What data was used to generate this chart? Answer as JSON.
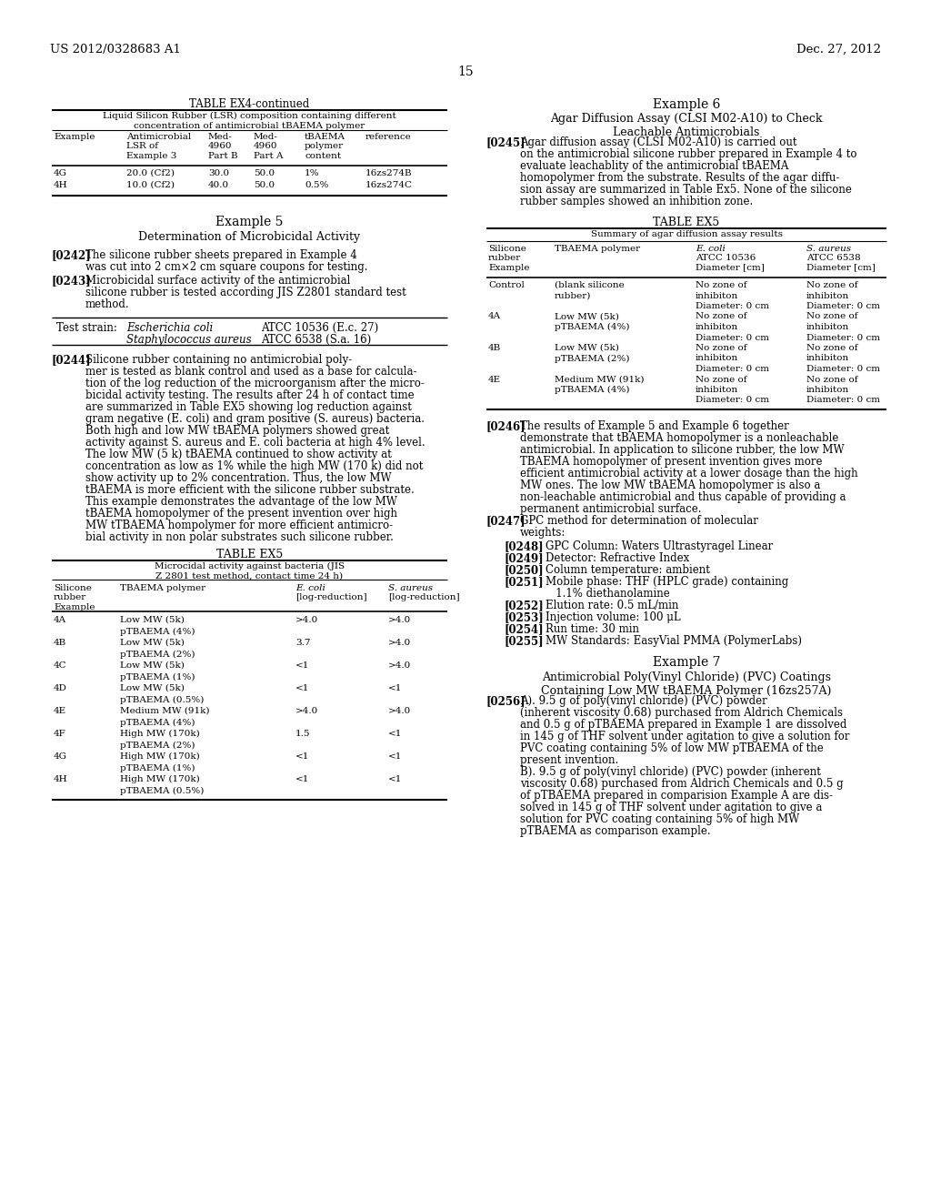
{
  "bg_color": "#ffffff",
  "header_left": "US 2012/0328683 A1",
  "header_right": "Dec. 27, 2012",
  "page_num": "15",
  "left_col": {
    "table_ex4_title": "TABLE EX4-continued",
    "table_ex4_subtitle": "Liquid Silicon Rubber (LSR) composition containing different\nconcentration of antimicrobial tBAEMA polymer",
    "table_ex4_headers": [
      "Example",
      "Antimicrobial\nLSR of\nExample 3",
      "Med-\n4960\nPart B",
      "Med-\n4960\nPart A",
      "tBAEMA\npolymer\ncontent",
      "reference"
    ],
    "table_ex4_rows": [
      [
        "4G",
        "20.0 (Cf2)",
        "30.0",
        "50.0",
        "1%",
        "16zs274B"
      ],
      [
        "4H",
        "10.0 (Cf2)",
        "40.0",
        "50.0",
        "0.5%",
        "16zs274C"
      ]
    ],
    "example5_title": "Example 5",
    "example5_subtitle": "Determination of Microbicidal Activity",
    "test_strain_ecoli": "Escherichia coli",
    "test_strain_staph": "Staphylococcus aureus",
    "test_strain_ecoli_atcc": "ATCC 10536 (E.c. 27)",
    "test_strain_staph_atcc": "ATCC 6538 (S.a. 16)",
    "table_ex5_title": "TABLE EX5",
    "table_ex5_subtitle": "Microcidal activity against bacteria (JIS\nZ 2801 test method, contact time 24 h)",
    "table_ex5_rows": [
      [
        "4A",
        "Low MW (5k)",
        ">4.0",
        ">4.0"
      ],
      [
        "",
        "pTBAEMA (4%)",
        "",
        ""
      ],
      [
        "4B",
        "Low MW (5k)",
        "3.7",
        ">4.0"
      ],
      [
        "",
        "pTBAEMA (2%)",
        "",
        ""
      ],
      [
        "4C",
        "Low MW (5k)",
        "<1",
        ">4.0"
      ],
      [
        "",
        "pTBAEMA (1%)",
        "",
        ""
      ],
      [
        "4D",
        "Low MW (5k)",
        "<1",
        "<1"
      ],
      [
        "",
        "pTBAEMA (0.5%)",
        "",
        ""
      ],
      [
        "4E",
        "Medium MW (91k)",
        ">4.0",
        ">4.0"
      ],
      [
        "",
        "pTBAEMA (4%)",
        "",
        ""
      ],
      [
        "4F",
        "High MW (170k)",
        "1.5",
        "<1"
      ],
      [
        "",
        "pTBAEMA (2%)",
        "",
        ""
      ],
      [
        "4G",
        "High MW (170k)",
        "<1",
        "<1"
      ],
      [
        "",
        "pTBAEMA (1%)",
        "",
        ""
      ],
      [
        "4H",
        "High MW (170k)",
        "<1",
        "<1"
      ],
      [
        "",
        "pTBAEMA (0.5%)",
        "",
        ""
      ]
    ]
  },
  "right_col": {
    "example6_title": "Example 6",
    "example6_subtitle": "Agar Diffusion Assay (CLSI M02-A10) to Check\nLeachable Antimicrobials",
    "table_ex5_right_title": "TABLE EX5",
    "table_ex5_right_subtitle": "Summary of agar diffusion assay results",
    "table_ex5_right_rows": [
      [
        "Control",
        "(blank silicone",
        "No zone of",
        "No zone of"
      ],
      [
        "",
        "rubber)",
        "inhibiton",
        "inhibiton"
      ],
      [
        "",
        "",
        "Diameter: 0 cm",
        "Diameter: 0 cm"
      ],
      [
        "4A",
        "Low MW (5k)",
        "No zone of",
        "No zone of"
      ],
      [
        "",
        "pTBAEMA (4%)",
        "inhibiton",
        "inhibiton"
      ],
      [
        "",
        "",
        "Diameter: 0 cm",
        "Diameter: 0 cm"
      ],
      [
        "4B",
        "Low MW (5k)",
        "No zone of",
        "No zone of"
      ],
      [
        "",
        "pTBAEMA (2%)",
        "inhibiton",
        "inhibiton"
      ],
      [
        "",
        "",
        "Diameter: 0 cm",
        "Diameter: 0 cm"
      ],
      [
        "4E",
        "Medium MW (91k)",
        "No zone of",
        "No zone of"
      ],
      [
        "",
        "pTBAEMA (4%)",
        "inhibiton",
        "inhibiton"
      ],
      [
        "",
        "",
        "Diameter: 0 cm",
        "Diameter: 0 cm"
      ]
    ],
    "example7_title": "Example 7",
    "example7_subtitle": "Antimicrobial Poly(Vinyl Chloride) (PVC) Coatings\nContaining Low MW tBAEMA Polymer (16zs257A)"
  }
}
